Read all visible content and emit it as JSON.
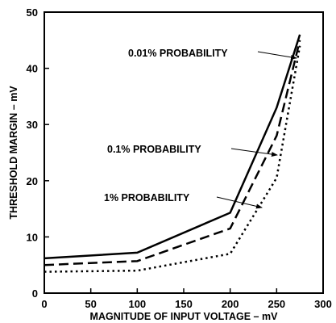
{
  "chart_data": {
    "type": "line",
    "title": "",
    "xlabel": "MAGNITUDE OF INPUT VOLTAGE – mV",
    "ylabel": "THRESHOLD MARGIN – mV",
    "xlim": [
      0,
      300
    ],
    "ylim": [
      0,
      50
    ],
    "xticks": [
      "0",
      "50",
      "100",
      "150",
      "200",
      "250",
      "300"
    ],
    "yticks": [
      "0",
      "10",
      "20",
      "30",
      "40",
      "50"
    ],
    "grid": false,
    "series": [
      {
        "name": "0.01% PROBABILITY",
        "style": "solid",
        "x": [
          0,
          100,
          200,
          250,
          275
        ],
        "y": [
          6.2,
          7.2,
          14.3,
          33,
          46
        ]
      },
      {
        "name": "0.1% PROBABILITY",
        "style": "dashed",
        "x": [
          0,
          100,
          200,
          250,
          275
        ],
        "y": [
          5.0,
          5.7,
          11.5,
          28,
          45
        ]
      },
      {
        "name": "1% PROBABILITY",
        "style": "dotted",
        "x": [
          0,
          100,
          200,
          250,
          275
        ],
        "y": [
          3.8,
          4.0,
          7.0,
          20.5,
          44
        ]
      }
    ],
    "annotations": [
      {
        "text": "0.01% PROBABILITY",
        "series": 0
      },
      {
        "text": "0.1% PROBABILITY",
        "series": 1
      },
      {
        "text": "1% PROBABILITY",
        "series": 2
      }
    ]
  }
}
